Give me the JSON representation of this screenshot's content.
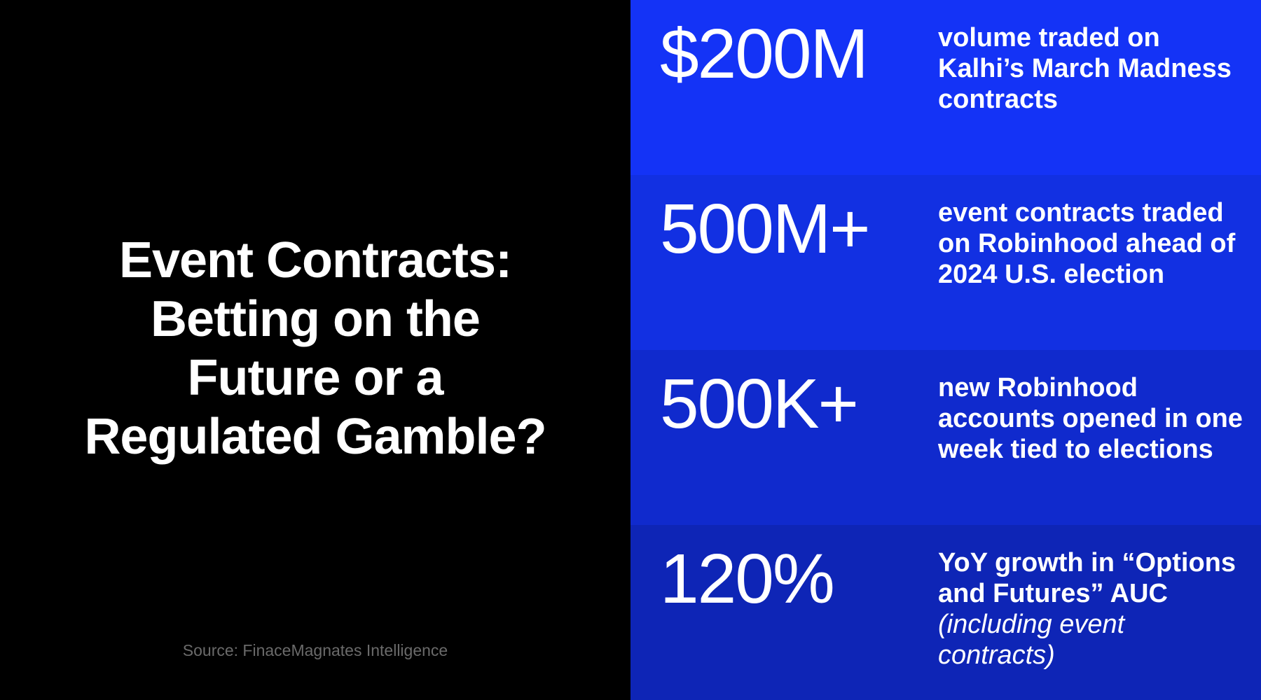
{
  "title_lines": [
    "Event Contracts:",
    "Betting on the",
    "Future or a",
    "Regulated Gamble?"
  ],
  "source": "Source: FinaceMagnates Intelligence",
  "colors": {
    "left_background": "#000000",
    "row1": "#1433f6",
    "row2": "#1230e2",
    "row3": "#102acd",
    "row4": "#0e25b6"
  },
  "stats": [
    {
      "value": "$200M",
      "description": "volume traded on Kalhi’s March Madness contracts",
      "note": ""
    },
    {
      "value": "500M+",
      "description": "event contracts traded on Robinhood ahead of 2024 U.S. election",
      "note": ""
    },
    {
      "value": "500K+",
      "description": "new Robinhood accounts opened in one week tied to elections",
      "note": ""
    },
    {
      "value": "120%",
      "description": "YoY growth in “Options and Futures” AUC",
      "note": "(including event contracts)"
    }
  ]
}
